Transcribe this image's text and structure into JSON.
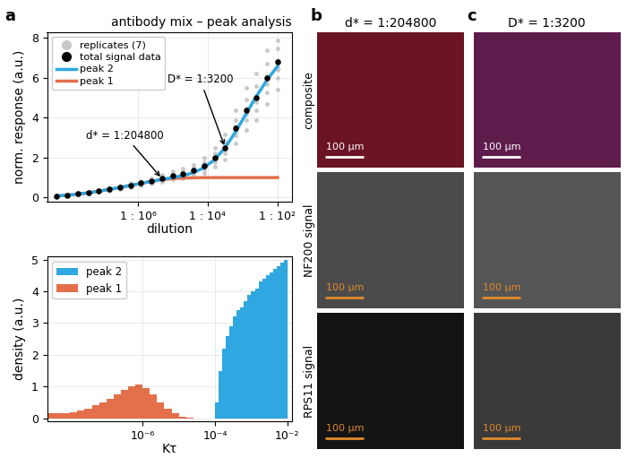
{
  "panel_label": "a",
  "chart_data": [
    {
      "type": "line",
      "title": "antibody mix – peak analysis",
      "x_label": "dilution",
      "y_label": "norm. response (a.u.)",
      "log": "x",
      "grid": true,
      "legend": "upper left",
      "xlim": [
        2.5e-09,
        0.025
      ],
      "ylim": [
        -0.2,
        8.3
      ],
      "xticks": [
        {
          "value": 1e-06,
          "label": "1 : 10⁶"
        },
        {
          "value": 0.0001,
          "label": "1 : 10⁴"
        },
        {
          "value": 0.01,
          "label": "1 : 10²"
        }
      ],
      "yticks": [
        0,
        2,
        4,
        6,
        8
      ],
      "x": [
        4.768e-09,
        9.537e-09,
        1.907e-08,
        3.815e-08,
        7.629e-08,
        1.526e-07,
        3.052e-07,
        6.104e-07,
        1.221e-06,
        2.441e-06,
        4.883e-06,
        9.766e-06,
        1.953e-05,
        3.906e-05,
        7.813e-05,
        0.0001563,
        0.0003125,
        0.000625,
        0.00125,
        0.0025,
        0.005,
        0.01
      ],
      "series": [
        {
          "name": "replicates (7)",
          "type": "scatter",
          "marker": "o",
          "color": "#c8c8c8",
          "values": [
            [
              0.05,
              0.07,
              0.08,
              0.09,
              0.1,
              0.06,
              0.11
            ],
            [
              0.09,
              0.1,
              0.13,
              0.14,
              0.11,
              0.15,
              0.12
            ],
            [
              0.14,
              0.16,
              0.19,
              0.2,
              0.22,
              0.17,
              0.18
            ],
            [
              0.2,
              0.22,
              0.26,
              0.28,
              0.3,
              0.24,
              0.25
            ],
            [
              0.27,
              0.3,
              0.34,
              0.36,
              0.39,
              0.31,
              0.34
            ],
            [
              0.35,
              0.38,
              0.43,
              0.45,
              0.5,
              0.4,
              0.43
            ],
            [
              0.44,
              0.48,
              0.53,
              0.56,
              0.6,
              0.5,
              0.53
            ],
            [
              0.52,
              0.57,
              0.63,
              0.67,
              0.72,
              0.6,
              0.63
            ],
            [
              0.6,
              0.66,
              0.74,
              0.78,
              0.84,
              0.7,
              0.72
            ],
            [
              0.68,
              0.75,
              0.84,
              0.9,
              0.96,
              0.8,
              0.81
            ],
            [
              0.78,
              0.86,
              0.97,
              1.04,
              1.12,
              0.92,
              0.96
            ],
            [
              0.9,
              1.0,
              1.12,
              1.2,
              1.32,
              1.05,
              1.11
            ],
            [
              0.95,
              1.08,
              1.22,
              1.32,
              1.45,
              1.15,
              1.23
            ],
            [
              1.05,
              1.2,
              1.38,
              1.5,
              1.65,
              1.3,
              1.37
            ],
            [
              1.25,
              1.42,
              1.62,
              1.78,
              1.98,
              1.52,
              1.63
            ],
            [
              1.55,
              1.78,
              2.05,
              2.22,
              2.48,
              1.9,
              2.02
            ],
            [
              1.9,
              2.2,
              2.55,
              2.8,
              3.15,
              2.4,
              2.5
            ],
            [
              2.7,
              3.1,
              3.55,
              3.9,
              4.4,
              3.3,
              3.55
            ],
            [
              3.4,
              3.9,
              4.45,
              4.9,
              5.5,
              4.2,
              4.45
            ],
            [
              3.9,
              4.4,
              5.05,
              5.6,
              6.2,
              4.8,
              5.05
            ],
            [
              4.7,
              5.3,
              6.1,
              6.7,
              7.4,
              5.7,
              6.1
            ],
            [
              5.4,
              6.0,
              6.9,
              7.5,
              7.9,
              6.5,
              6.4
            ]
          ]
        },
        {
          "name": "total signal data",
          "type": "scatter",
          "marker": "o",
          "color": "#000000",
          "values": [
            0.08,
            0.12,
            0.18,
            0.25,
            0.33,
            0.42,
            0.52,
            0.62,
            0.72,
            0.82,
            0.95,
            1.1,
            1.2,
            1.35,
            1.6,
            2.0,
            2.5,
            3.5,
            4.4,
            5.0,
            6.0,
            6.8
          ]
        },
        {
          "name": "peak 2",
          "type": "line",
          "line_style": "solid",
          "color": "#2fa7e0",
          "values": [
            0.08,
            0.12,
            0.17,
            0.24,
            0.32,
            0.41,
            0.51,
            0.61,
            0.71,
            0.81,
            0.91,
            1.0,
            1.1,
            1.25,
            1.5,
            1.9,
            2.5,
            3.3,
            4.2,
            5.1,
            5.9,
            6.6
          ]
        },
        {
          "name": "peak 1",
          "type": "line",
          "line_style": "solid",
          "color": "#e3704a",
          "values": [
            0.08,
            0.12,
            0.17,
            0.24,
            0.32,
            0.41,
            0.51,
            0.61,
            0.71,
            0.81,
            0.9,
            0.95,
            0.98,
            0.99,
            1.0,
            1.0,
            1.0,
            1.0,
            1.0,
            1.0,
            1.0,
            1.0
          ]
        }
      ],
      "annotations": [
        {
          "text": "d* = 1:204800",
          "x": 4.883e-06,
          "y": 0.95
        },
        {
          "text": "D* = 1:3200",
          "x": 0.0003125,
          "y": 2.5
        }
      ]
    },
    {
      "type": "histogram",
      "x_label": "Kτ",
      "y_label": "density (a.u.)",
      "log": "x",
      "grid": true,
      "legend": "upper left",
      "xlim": [
        2.3e-09,
        0.013
      ],
      "ylim": [
        -0.1,
        5.1
      ],
      "xticks": [
        {
          "value": 1e-06,
          "label": "10⁻⁶"
        },
        {
          "value": 0.0001,
          "label": "10⁻⁴"
        },
        {
          "value": 0.01,
          "label": "10⁻²"
        }
      ],
      "yticks": [
        0,
        1,
        2,
        3,
        4,
        5
      ],
      "series": [
        {
          "name": "peak 2",
          "color": "#2fa7e0",
          "bins": [
            0.0001,
            0.0001259,
            0.0001585,
            0.0001995,
            0.0002512,
            0.0003162,
            0.0003981,
            0.0005012,
            0.000631,
            0.0007943,
            0.001,
            0.001259,
            0.001585,
            0.001995,
            0.002512,
            0.003162,
            0.003981,
            0.005012,
            0.00631,
            0.007943,
            0.01
          ],
          "counts": [
            0.5,
            1.5,
            2.2,
            2.6,
            2.9,
            3.2,
            3.4,
            3.5,
            3.7,
            3.9,
            4.0,
            4.1,
            4.3,
            4.4,
            4.5,
            4.6,
            4.7,
            4.8,
            4.9,
            5.0
          ]
        },
        {
          "name": "peak 1",
          "color": "#e3704a",
          "bins": [
            2.512e-09,
            3.981e-09,
            6.31e-09,
            1e-08,
            1.585e-08,
            2.512e-08,
            3.981e-08,
            6.31e-08,
            1e-07,
            1.585e-07,
            2.512e-07,
            3.981e-07,
            6.31e-07,
            1e-06,
            1.585e-06,
            2.512e-06,
            3.981e-06,
            6.31e-06,
            1e-05,
            1.585e-05,
            2.512e-05
          ],
          "counts": [
            0.15,
            0.15,
            0.15,
            0.2,
            0.25,
            0.3,
            0.4,
            0.5,
            0.6,
            0.75,
            0.9,
            1.0,
            1.05,
            0.95,
            0.75,
            0.5,
            0.3,
            0.15,
            0.05,
            0.02
          ]
        }
      ]
    }
  ],
  "image_panels": {
    "columns": [
      {
        "label": "b",
        "title": "d* = 1:204800"
      },
      {
        "label": "c",
        "title": "D* = 1:3200"
      }
    ],
    "rows": [
      "composite",
      "NF200 signal",
      "RPS11 signal"
    ],
    "scale_bar": "100 μm"
  }
}
